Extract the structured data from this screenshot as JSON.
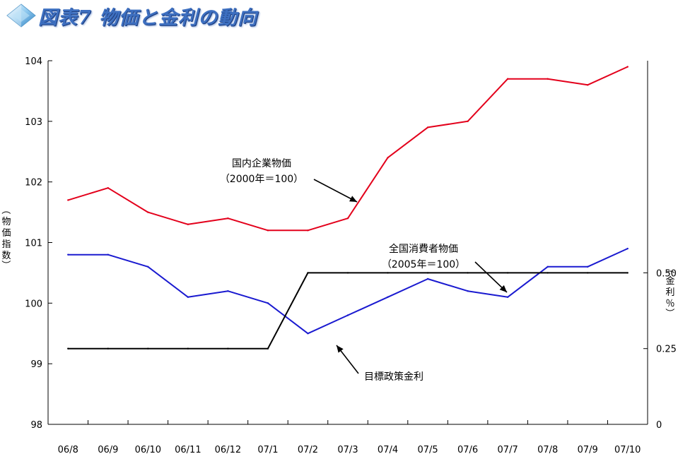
{
  "header": {
    "title": "図表7 物価と金利の動向",
    "icon": "diamond-icon"
  },
  "chart_data": {
    "type": "line",
    "categories": [
      "06/8",
      "06/9",
      "06/10",
      "06/11",
      "06/12",
      "07/1",
      "07/2",
      "07/3",
      "07/4",
      "07/5",
      "07/6",
      "07/7",
      "07/8",
      "07/9",
      "07/10"
    ],
    "left_axis": {
      "label": "物価指数",
      "label_open": "（",
      "label_close": "）",
      "ylim": [
        98,
        104
      ],
      "ticks": [
        "98",
        "99",
        "100",
        "101",
        "102",
        "103",
        "104"
      ]
    },
    "right_axis": {
      "label": "金利％",
      "label_open": "（",
      "label_close": "）",
      "ylim": [
        0,
        1.2
      ],
      "ticks": [
        "0",
        "0.25",
        "0.50"
      ]
    },
    "series": [
      {
        "name": "国内企業物価",
        "name_sub": "（2000年＝100）",
        "axis": "left",
        "color": "#e3001b",
        "values": [
          101.7,
          101.9,
          101.5,
          101.3,
          101.4,
          101.2,
          101.2,
          101.4,
          102.4,
          102.9,
          103.0,
          103.7,
          103.7,
          103.6,
          103.9
        ]
      },
      {
        "name": "全国消費者物価",
        "name_sub": "（2005年＝100）",
        "axis": "left",
        "color": "#1a1ad0",
        "values": [
          100.8,
          100.8,
          100.6,
          100.1,
          100.2,
          100.0,
          99.5,
          99.8,
          100.1,
          100.4,
          100.2,
          100.1,
          100.6,
          100.6,
          100.9
        ]
      },
      {
        "name": "目標政策金利",
        "axis": "right",
        "color": "#000000",
        "values": [
          0.25,
          0.25,
          0.25,
          0.25,
          0.25,
          0.25,
          0.5,
          0.5,
          0.5,
          0.5,
          0.5,
          0.5,
          0.5,
          0.5,
          0.5
        ]
      }
    ],
    "grid": false,
    "legend": "inline-annotations"
  }
}
